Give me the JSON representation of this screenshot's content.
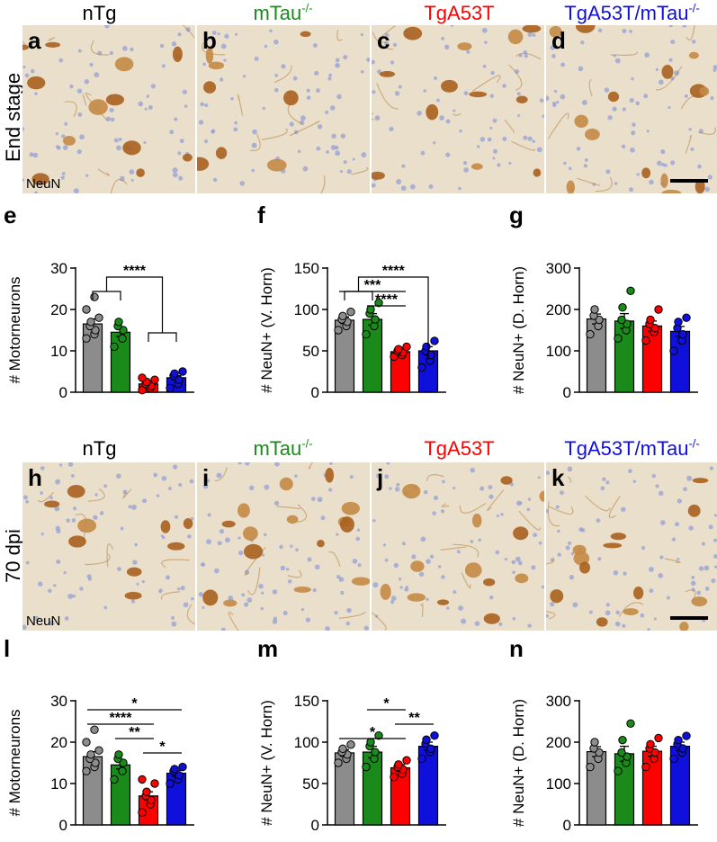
{
  "groups": [
    "nTg",
    "mTau",
    "TgA53T",
    "TgA53T/mTau"
  ],
  "group_sup": "-/-",
  "group_colors": [
    "#000000",
    "#1a8a1a",
    "#ff0000",
    "#1010dd"
  ],
  "row1": {
    "label": "End stage",
    "panels": [
      "a",
      "b",
      "c",
      "d"
    ],
    "stain": "NeuN"
  },
  "row2": {
    "label": "70 dpi",
    "panels": [
      "h",
      "i",
      "j",
      "k"
    ],
    "stain": "NeuN"
  },
  "chart_data": [
    {
      "id": "e",
      "type": "bar",
      "ylabel": "# Motorneurons",
      "ylim": [
        0,
        30
      ],
      "yticks": [
        0,
        10,
        20,
        30
      ],
      "categories": [
        "nTg",
        "mTau-/-",
        "TgA53T",
        "TgA53T/mTau-/-"
      ],
      "values": [
        16.5,
        14.5,
        2.0,
        3.5
      ],
      "errors": [
        1.2,
        1.0,
        0.5,
        0.5
      ],
      "points": [
        [
          13,
          14,
          15,
          16,
          17,
          18,
          20,
          23
        ],
        [
          11,
          13,
          15,
          16,
          17
        ],
        [
          0.5,
          1,
          1.5,
          2,
          2.5,
          3,
          3.5
        ],
        [
          1,
          2,
          3,
          4,
          4.5,
          5
        ]
      ],
      "annotations": [
        {
          "text": "****",
          "kind": "bracket2",
          "from": [
            0,
            1
          ],
          "to": [
            2,
            3
          ]
        }
      ]
    },
    {
      "id": "f",
      "type": "bar",
      "ylabel": "# NeuN+ (V. Horn)",
      "ylim": [
        0,
        150
      ],
      "yticks": [
        0,
        50,
        100,
        150
      ],
      "categories": [
        "nTg",
        "mTau-/-",
        "TgA53T",
        "TgA53T/mTau-/-"
      ],
      "values": [
        87,
        88,
        49,
        50
      ],
      "errors": [
        4,
        7,
        3,
        5
      ],
      "points": [
        [
          75,
          80,
          85,
          88,
          92,
          97
        ],
        [
          70,
          80,
          88,
          95,
          100,
          108
        ],
        [
          43,
          45,
          48,
          50,
          52,
          55
        ],
        [
          30,
          38,
          45,
          50,
          55,
          62
        ]
      ],
      "annotations": [
        {
          "text": "****",
          "kind": "bracket2",
          "from": [
            0,
            1
          ],
          "to": [
            3
          ]
        },
        {
          "text": "***",
          "kind": "line",
          "from": 0,
          "to": 2
        },
        {
          "text": "****",
          "kind": "line",
          "from": 1,
          "to": 2
        }
      ]
    },
    {
      "id": "g",
      "type": "bar",
      "ylabel": "# NeuN+ (D. Horn)",
      "ylim": [
        0,
        300
      ],
      "yticks": [
        0,
        100,
        200,
        300
      ],
      "categories": [
        "nTg",
        "mTau-/-",
        "TgA53T",
        "TgA53T/mTau-/-"
      ],
      "values": [
        177,
        172,
        160,
        147
      ],
      "errors": [
        12,
        18,
        12,
        12
      ],
      "points": [
        [
          140,
          160,
          175,
          185,
          200
        ],
        [
          130,
          150,
          165,
          175,
          205,
          245
        ],
        [
          125,
          145,
          155,
          165,
          175,
          200
        ],
        [
          100,
          125,
          140,
          155,
          170,
          180
        ]
      ],
      "annotations": []
    },
    {
      "id": "l",
      "type": "bar",
      "ylabel": "# Motorneurons",
      "ylim": [
        0,
        30
      ],
      "yticks": [
        0,
        10,
        20,
        30
      ],
      "categories": [
        "nTg",
        "mTau-/-",
        "TgA53T",
        "TgA53T/mTau-/-"
      ],
      "values": [
        16.5,
        14.5,
        7.0,
        12.5
      ],
      "errors": [
        1.2,
        1.0,
        1.0,
        0.7
      ],
      "points": [
        [
          13,
          14,
          15,
          16,
          17,
          18,
          20,
          23
        ],
        [
          11,
          13,
          15,
          16,
          17
        ],
        [
          3,
          5,
          6,
          7,
          8,
          10,
          11
        ],
        [
          10,
          11,
          12,
          13,
          13.5,
          14
        ]
      ],
      "annotations": [
        {
          "text": "*",
          "kind": "line",
          "from": 0,
          "to": 3
        },
        {
          "text": "****",
          "kind": "line",
          "from": 0,
          "to": 2
        },
        {
          "text": "**",
          "kind": "line",
          "from": 1,
          "to": 2
        },
        {
          "text": "*",
          "kind": "line",
          "from": 2,
          "to": 3
        }
      ]
    },
    {
      "id": "m",
      "type": "bar",
      "ylabel": "# NeuN+ (V. Horn)",
      "ylim": [
        0,
        150
      ],
      "yticks": [
        0,
        50,
        100,
        150
      ],
      "categories": [
        "nTg",
        "mTau-/-",
        "TgA53T",
        "TgA53T/mTau-/-"
      ],
      "values": [
        87,
        88,
        69,
        95
      ],
      "errors": [
        4,
        7,
        4,
        5
      ],
      "points": [
        [
          75,
          80,
          85,
          88,
          92,
          97
        ],
        [
          70,
          80,
          88,
          95,
          100,
          108
        ],
        [
          58,
          62,
          67,
          70,
          73,
          78
        ],
        [
          80,
          88,
          92,
          98,
          103,
          108
        ]
      ],
      "annotations": [
        {
          "text": "*",
          "kind": "line",
          "from": 1,
          "to": 2
        },
        {
          "text": "**",
          "kind": "line",
          "from": 2,
          "to": 3
        },
        {
          "text": "*",
          "kind": "line",
          "from": 0,
          "to": 2
        }
      ]
    },
    {
      "id": "n",
      "type": "bar",
      "ylabel": "# NeuN+ (D. Horn)",
      "ylim": [
        0,
        300
      ],
      "yticks": [
        0,
        100,
        200,
        300
      ],
      "categories": [
        "nTg",
        "mTau-/-",
        "TgA53T",
        "TgA53T/mTau-/-"
      ],
      "values": [
        177,
        172,
        178,
        190
      ],
      "errors": [
        12,
        18,
        12,
        10
      ],
      "points": [
        [
          140,
          160,
          175,
          185,
          200
        ],
        [
          130,
          150,
          165,
          175,
          205,
          245
        ],
        [
          140,
          160,
          175,
          185,
          195,
          210
        ],
        [
          160,
          175,
          185,
          195,
          205,
          215
        ]
      ],
      "annotations": []
    }
  ]
}
